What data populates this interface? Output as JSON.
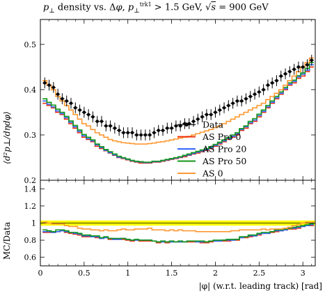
{
  "chart_data": [
    {
      "type": "line",
      "title": "p⊥ density vs. Δφ, p⊥trk1 > 1.5 GeV, √s = 900 GeV",
      "xlabel": "|φ| (w.r.t. leading track) [rad]",
      "ylabel": "⟨d²p⊥/dηdφ⟩",
      "xlim": [
        0,
        3.1416
      ],
      "ylim": [
        0.2,
        0.555
      ],
      "x_ticks": [
        "0",
        "0.5",
        "1",
        "1.5",
        "2",
        "2.5",
        "3"
      ],
      "y_ticks": [
        "0.2",
        "0.3",
        "0.4",
        "0.5"
      ],
      "legend_position": "bottom-right",
      "x": [
        0.05,
        0.1,
        0.15,
        0.2,
        0.25,
        0.3,
        0.35,
        0.4,
        0.45,
        0.5,
        0.55,
        0.6,
        0.65,
        0.7,
        0.75,
        0.8,
        0.85,
        0.9,
        0.95,
        1.0,
        1.05,
        1.1,
        1.15,
        1.2,
        1.25,
        1.3,
        1.35,
        1.4,
        1.45,
        1.5,
        1.55,
        1.6,
        1.65,
        1.7,
        1.75,
        1.8,
        1.85,
        1.9,
        1.95,
        2.0,
        2.05,
        2.1,
        2.15,
        2.2,
        2.25,
        2.3,
        2.35,
        2.4,
        2.45,
        2.5,
        2.55,
        2.6,
        2.65,
        2.7,
        2.75,
        2.8,
        2.85,
        2.9,
        2.95,
        3.0,
        3.05,
        3.1
      ],
      "series": [
        {
          "name": "Data",
          "color": "#000000",
          "style": "points",
          "values": [
            0.415,
            0.41,
            0.405,
            0.39,
            0.38,
            0.375,
            0.37,
            0.36,
            0.355,
            0.35,
            0.345,
            0.34,
            0.33,
            0.33,
            0.32,
            0.32,
            0.315,
            0.31,
            0.305,
            0.305,
            0.305,
            0.3,
            0.3,
            0.3,
            0.3,
            0.305,
            0.31,
            0.31,
            0.315,
            0.315,
            0.32,
            0.32,
            0.325,
            0.325,
            0.33,
            0.335,
            0.34,
            0.345,
            0.345,
            0.35,
            0.355,
            0.36,
            0.365,
            0.37,
            0.375,
            0.375,
            0.38,
            0.385,
            0.39,
            0.395,
            0.4,
            0.41,
            0.415,
            0.42,
            0.43,
            0.435,
            0.44,
            0.445,
            0.45,
            0.45,
            0.455,
            0.465
          ],
          "yerr": 0.012
        },
        {
          "name": "AS Pro 0",
          "color": "#ee3311",
          "values": [
            0.37,
            0.365,
            0.36,
            0.35,
            0.345,
            0.335,
            0.325,
            0.315,
            0.305,
            0.295,
            0.29,
            0.285,
            0.275,
            0.27,
            0.265,
            0.26,
            0.255,
            0.25,
            0.248,
            0.245,
            0.242,
            0.24,
            0.238,
            0.238,
            0.238,
            0.24,
            0.24,
            0.242,
            0.244,
            0.246,
            0.248,
            0.25,
            0.252,
            0.255,
            0.258,
            0.26,
            0.263,
            0.266,
            0.27,
            0.275,
            0.28,
            0.285,
            0.29,
            0.295,
            0.3,
            0.31,
            0.315,
            0.325,
            0.33,
            0.34,
            0.35,
            0.36,
            0.37,
            0.38,
            0.39,
            0.4,
            0.41,
            0.415,
            0.425,
            0.43,
            0.44,
            0.45
          ]
        },
        {
          "name": "AS Pro 20",
          "color": "#3366ff",
          "values": [
            0.375,
            0.368,
            0.362,
            0.353,
            0.347,
            0.338,
            0.328,
            0.318,
            0.308,
            0.298,
            0.292,
            0.287,
            0.278,
            0.272,
            0.266,
            0.261,
            0.256,
            0.251,
            0.249,
            0.246,
            0.243,
            0.241,
            0.24,
            0.239,
            0.239,
            0.241,
            0.241,
            0.243,
            0.245,
            0.247,
            0.249,
            0.251,
            0.254,
            0.256,
            0.259,
            0.262,
            0.265,
            0.268,
            0.272,
            0.277,
            0.282,
            0.287,
            0.292,
            0.297,
            0.302,
            0.312,
            0.318,
            0.327,
            0.333,
            0.343,
            0.352,
            0.362,
            0.372,
            0.382,
            0.392,
            0.402,
            0.412,
            0.418,
            0.428,
            0.434,
            0.443,
            0.455
          ]
        },
        {
          "name": "AS Pro 50",
          "color": "#109618",
          "values": [
            0.38,
            0.372,
            0.366,
            0.357,
            0.35,
            0.341,
            0.331,
            0.321,
            0.311,
            0.301,
            0.295,
            0.289,
            0.28,
            0.274,
            0.268,
            0.263,
            0.258,
            0.253,
            0.25,
            0.247,
            0.244,
            0.242,
            0.241,
            0.24,
            0.24,
            0.242,
            0.242,
            0.244,
            0.246,
            0.248,
            0.25,
            0.252,
            0.255,
            0.258,
            0.261,
            0.264,
            0.267,
            0.27,
            0.274,
            0.279,
            0.284,
            0.289,
            0.294,
            0.3,
            0.305,
            0.314,
            0.32,
            0.33,
            0.336,
            0.346,
            0.355,
            0.365,
            0.375,
            0.385,
            0.395,
            0.405,
            0.415,
            0.421,
            0.431,
            0.437,
            0.447,
            0.46
          ]
        },
        {
          "name": "AS 0",
          "color": "#ff9933",
          "values": [
            0.42,
            0.41,
            0.4,
            0.385,
            0.375,
            0.365,
            0.355,
            0.345,
            0.335,
            0.325,
            0.32,
            0.312,
            0.305,
            0.3,
            0.295,
            0.29,
            0.287,
            0.285,
            0.283,
            0.282,
            0.281,
            0.28,
            0.28,
            0.28,
            0.281,
            0.282,
            0.284,
            0.285,
            0.287,
            0.289,
            0.291,
            0.293,
            0.295,
            0.297,
            0.3,
            0.303,
            0.306,
            0.309,
            0.312,
            0.316,
            0.32,
            0.325,
            0.33,
            0.335,
            0.34,
            0.345,
            0.35,
            0.355,
            0.36,
            0.365,
            0.37,
            0.378,
            0.385,
            0.392,
            0.4,
            0.41,
            0.42,
            0.43,
            0.44,
            0.45,
            0.46,
            0.47
          ]
        }
      ],
      "legend": [
        "Data",
        "AS Pro 0",
        "AS Pro 20",
        "AS Pro 50",
        "AS 0"
      ]
    },
    {
      "type": "line",
      "title": "",
      "xlabel": "|φ| (w.r.t. leading track) [rad]",
      "ylabel": "MC/Data",
      "xlim": [
        0,
        3.1416
      ],
      "ylim": [
        0.5,
        1.5
      ],
      "x_ticks": [
        "0",
        "0.5",
        "1",
        "1.5",
        "2",
        "2.5",
        "3"
      ],
      "y_ticks": [
        "0.6",
        "0.8",
        "1",
        "1.2",
        "1.4"
      ],
      "data_band": {
        "low": 0.97,
        "high": 1.03,
        "color": "#ffff00"
      },
      "series": [
        {
          "name": "AS Pro 0",
          "color": "#ee3311",
          "values": [
            0.89,
            0.89,
            0.89,
            0.9,
            0.91,
            0.89,
            0.88,
            0.87,
            0.86,
            0.84,
            0.84,
            0.84,
            0.83,
            0.82,
            0.83,
            0.81,
            0.81,
            0.81,
            0.81,
            0.8,
            0.79,
            0.8,
            0.79,
            0.79,
            0.79,
            0.79,
            0.77,
            0.78,
            0.77,
            0.78,
            0.78,
            0.78,
            0.78,
            0.78,
            0.78,
            0.78,
            0.77,
            0.77,
            0.78,
            0.79,
            0.79,
            0.79,
            0.79,
            0.8,
            0.8,
            0.83,
            0.83,
            0.84,
            0.85,
            0.86,
            0.88,
            0.88,
            0.89,
            0.9,
            0.91,
            0.92,
            0.93,
            0.93,
            0.94,
            0.96,
            0.97,
            0.97
          ]
        },
        {
          "name": "AS Pro 20",
          "color": "#3366ff",
          "values": [
            0.9,
            0.9,
            0.89,
            0.9,
            0.91,
            0.9,
            0.89,
            0.88,
            0.87,
            0.85,
            0.85,
            0.84,
            0.84,
            0.82,
            0.83,
            0.82,
            0.81,
            0.81,
            0.82,
            0.81,
            0.8,
            0.8,
            0.8,
            0.8,
            0.8,
            0.79,
            0.78,
            0.78,
            0.78,
            0.78,
            0.78,
            0.78,
            0.78,
            0.79,
            0.79,
            0.78,
            0.78,
            0.78,
            0.79,
            0.79,
            0.79,
            0.8,
            0.8,
            0.8,
            0.81,
            0.83,
            0.84,
            0.85,
            0.85,
            0.87,
            0.88,
            0.88,
            0.9,
            0.91,
            0.91,
            0.92,
            0.94,
            0.94,
            0.95,
            0.96,
            0.97,
            0.98
          ]
        },
        {
          "name": "AS Pro 50",
          "color": "#109618",
          "values": [
            0.92,
            0.91,
            0.9,
            0.92,
            0.92,
            0.91,
            0.89,
            0.89,
            0.88,
            0.86,
            0.86,
            0.85,
            0.85,
            0.83,
            0.84,
            0.82,
            0.82,
            0.82,
            0.82,
            0.81,
            0.8,
            0.81,
            0.8,
            0.8,
            0.8,
            0.79,
            0.78,
            0.79,
            0.78,
            0.79,
            0.78,
            0.79,
            0.78,
            0.79,
            0.79,
            0.79,
            0.79,
            0.78,
            0.79,
            0.8,
            0.8,
            0.8,
            0.81,
            0.81,
            0.81,
            0.84,
            0.84,
            0.86,
            0.86,
            0.88,
            0.89,
            0.89,
            0.9,
            0.92,
            0.92,
            0.93,
            0.94,
            0.95,
            0.96,
            0.97,
            0.98,
            0.99
          ]
        },
        {
          "name": "AS 0",
          "color": "#ff9933",
          "values": [
            1.01,
            1.0,
            0.99,
            0.99,
            0.99,
            0.97,
            0.96,
            0.96,
            0.94,
            0.93,
            0.93,
            0.92,
            0.92,
            0.91,
            0.92,
            0.91,
            0.91,
            0.92,
            0.93,
            0.92,
            0.92,
            0.93,
            0.93,
            0.93,
            0.94,
            0.92,
            0.92,
            0.92,
            0.91,
            0.92,
            0.91,
            0.92,
            0.91,
            0.91,
            0.91,
            0.9,
            0.9,
            0.9,
            0.9,
            0.9,
            0.9,
            0.9,
            0.9,
            0.91,
            0.91,
            0.92,
            0.92,
            0.92,
            0.92,
            0.92,
            0.93,
            0.92,
            0.93,
            0.93,
            0.93,
            0.94,
            0.95,
            0.97,
            0.98,
            1.0,
            1.01,
            1.01
          ]
        }
      ]
    }
  ]
}
